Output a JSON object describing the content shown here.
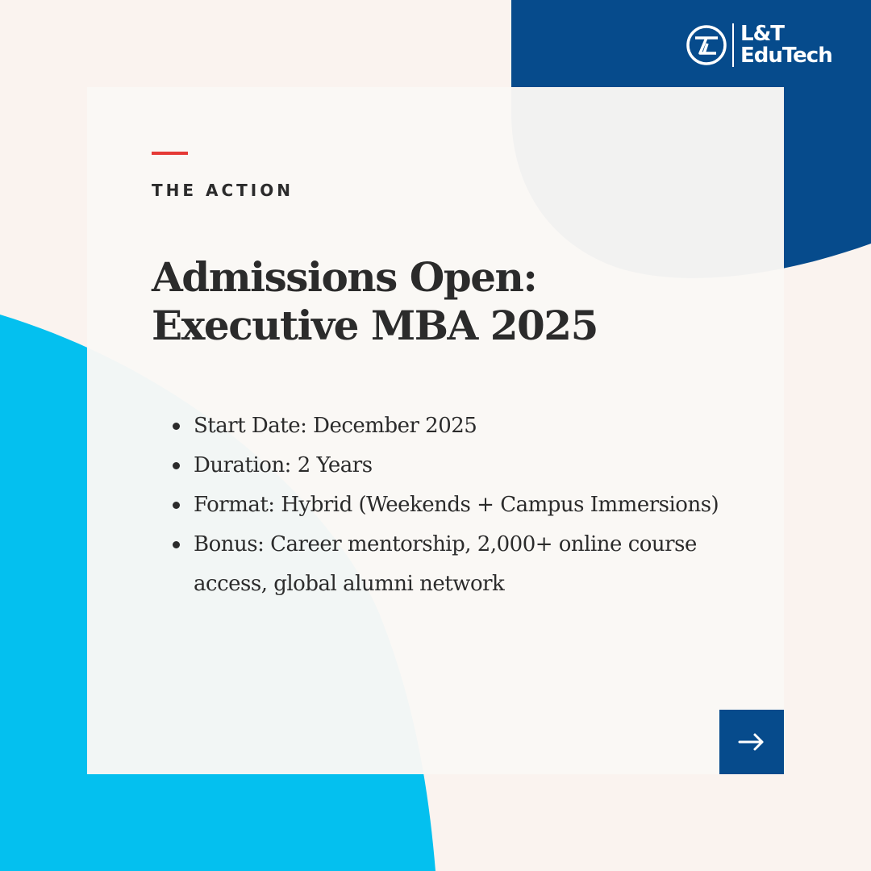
{
  "brand": {
    "line1": "L&T",
    "line2": "EduTech"
  },
  "card": {
    "eyebrow": "THE ACTION",
    "headline": "Admissions Open: Executive MBA 2025",
    "details": [
      "Start Date: December 2025",
      "Duration: 2 Years",
      "Format: Hybrid (Weekends + Campus Immersions)",
      "Bonus: Career mentorship, 2,000+ online course access, global alumni network"
    ]
  },
  "colors": {
    "background": "#faf3ef",
    "navy_blob": "#064b8c",
    "cyan_blob": "#04c0ef",
    "accent_red": "#e53935",
    "text": "#2b2b2b"
  },
  "icons": {
    "next": "arrow-right-icon",
    "logo": "lt-logo-icon"
  }
}
